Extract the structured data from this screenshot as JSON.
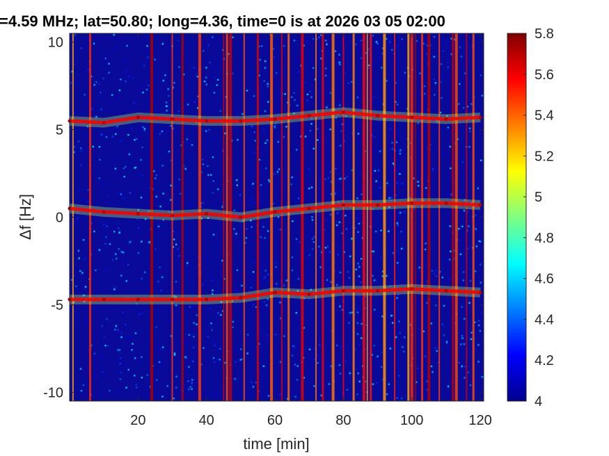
{
  "chart_data": {
    "type": "heatmap",
    "title": "=4.59 MHz;  lat=50.80; long=4.36, time=0 is at 2026 03 05 02:00",
    "xlabel": "time [min]",
    "ylabel": "Δf [Hz]",
    "xlim": [
      0,
      121
    ],
    "ylim": [
      -10.5,
      10.5
    ],
    "x_ticks": [
      "20",
      "40",
      "60",
      "80",
      "100",
      "120"
    ],
    "x_tick_values": [
      20,
      40,
      60,
      80,
      100,
      120
    ],
    "y_ticks": [
      "10",
      "5",
      "0",
      "-5",
      "-10"
    ],
    "y_tick_values": [
      10,
      5,
      0,
      -5,
      -10
    ],
    "colorbar": {
      "range": [
        4,
        5.8
      ],
      "ticks": [
        "5.8",
        "5.6",
        "5.4",
        "5.2",
        "5",
        "4.8",
        "4.6",
        "4.4",
        "4.2",
        "4"
      ],
      "tick_values": [
        5.8,
        5.6,
        5.4,
        5.2,
        5.0,
        4.8,
        4.6,
        4.4,
        4.2,
        4.0
      ],
      "colormap": "jet"
    },
    "series": [
      {
        "name": "",
        "x": [
          0,
          10,
          20,
          30,
          40,
          50,
          60,
          70,
          80,
          90,
          100,
          110,
          120
        ],
        "y": [
          5.5,
          5.4,
          5.7,
          5.6,
          5.5,
          5.5,
          5.6,
          5.8,
          6.0,
          5.8,
          5.7,
          5.6,
          5.7
        ]
      },
      {
        "name": "",
        "x": [
          0,
          10,
          20,
          30,
          40,
          50,
          60,
          70,
          80,
          90,
          100,
          110,
          120
        ],
        "y": [
          0.5,
          0.3,
          0.2,
          0.1,
          0.2,
          0.0,
          0.3,
          0.5,
          0.7,
          0.7,
          0.8,
          0.8,
          0.7
        ]
      },
      {
        "name": "",
        "x": [
          0,
          10,
          20,
          30,
          40,
          50,
          60,
          70,
          80,
          90,
          100,
          110,
          120
        ],
        "y": [
          -4.7,
          -4.7,
          -4.7,
          -4.7,
          -4.7,
          -4.6,
          -4.3,
          -4.4,
          -4.2,
          -4.2,
          -4.1,
          -4.2,
          -4.3
        ]
      }
    ],
    "broadband_interference_times": [
      1,
      6,
      24,
      30,
      33,
      38,
      45,
      46,
      47,
      51,
      55,
      59,
      62,
      64,
      68,
      72,
      74,
      77,
      80,
      83,
      86,
      87,
      88,
      92,
      95,
      99,
      100,
      101,
      103,
      105,
      108,
      112,
      113,
      116,
      118
    ],
    "grid": false,
    "legend": "none"
  }
}
